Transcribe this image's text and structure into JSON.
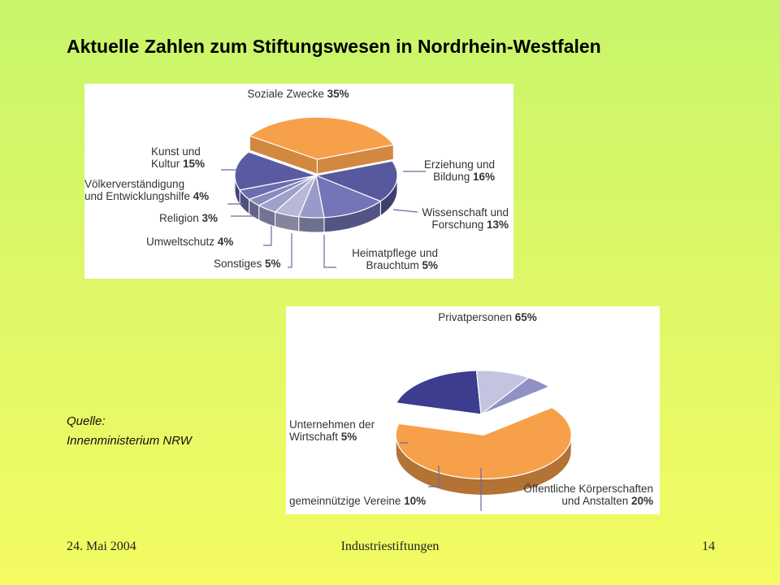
{
  "slide": {
    "title": "Aktuelle Zahlen zum Stiftungswesen in Nordrhein-Westfalen",
    "source_label": "Quelle:",
    "source_name": "Innenministerium NRW"
  },
  "footer": {
    "date": "24. Mai 2004",
    "center": "Industriestiftungen",
    "page": "14"
  },
  "colors": {
    "orange": "#f7a04a",
    "dark_blue": "#3d3d8f",
    "purple": "#7474b8",
    "light_purple": "#b0b0d6",
    "pale": "#d8d8ea"
  },
  "chart_data": [
    {
      "type": "pie",
      "title": "",
      "slices": [
        {
          "label": "Soziale Zwecke",
          "value": 35,
          "pct_text": "35%",
          "color": "#f7a04a",
          "exploded": true
        },
        {
          "label": "Erziehung und Bildung",
          "value": 16,
          "pct_text": "16%",
          "color": "#58589e"
        },
        {
          "label": "Wissenschaft und Forschung",
          "value": 13,
          "pct_text": "13%",
          "color": "#7474b8"
        },
        {
          "label": "Heimatpflege und Brauchtum",
          "value": 5,
          "pct_text": "5%",
          "color": "#9a9ac8"
        },
        {
          "label": "Sonstiges",
          "value": 5,
          "pct_text": "5%",
          "color": "#b8b8d8"
        },
        {
          "label": "Umweltschutz",
          "value": 4,
          "pct_text": "4%",
          "color": "#a0a0cc"
        },
        {
          "label": "Religion",
          "value": 3,
          "pct_text": "3%",
          "color": "#8a8ac0"
        },
        {
          "label": "Völkerverständigung und Entwicklungshilfe",
          "value": 4,
          "pct_text": "4%",
          "color": "#6c6cb0"
        },
        {
          "label": "Kunst und Kultur",
          "value": 15,
          "pct_text": "15%",
          "color": "#5a5aa2"
        }
      ],
      "label_lines": {
        "Soziale Zwecke": [
          "Soziale Zwecke"
        ],
        "Erziehung und Bildung": [
          "Erziehung und",
          "Bildung"
        ],
        "Wissenschaft und Forschung": [
          "Wissenschaft und",
          "Forschung"
        ],
        "Heimatpflege und Brauchtum": [
          "Heimatpflege und",
          "Brauchtum"
        ],
        "Sonstiges": [
          "Sonstiges"
        ],
        "Umweltschutz": [
          "Umweltschutz"
        ],
        "Religion": [
          "Religion"
        ],
        "Völkerverständigung und Entwicklungshilfe": [
          "Völkerverständigung",
          "und Entwicklungshilfe"
        ],
        "Kunst und Kultur": [
          "Kunst und",
          "Kultur"
        ]
      }
    },
    {
      "type": "pie",
      "title": "",
      "slices": [
        {
          "label": "Privatpersonen",
          "value": 65,
          "pct_text": "65%",
          "color": "#f7a04a",
          "exploded": true
        },
        {
          "label": "Öffentliche Körperschaften und Anstalten",
          "value": 20,
          "pct_text": "20%",
          "color": "#3d3d8f"
        },
        {
          "label": "gemeinnützige Vereine",
          "value": 10,
          "pct_text": "10%",
          "color": "#c4c4e0"
        },
        {
          "label": "Unternehmen der Wirtschaft",
          "value": 5,
          "pct_text": "5%",
          "color": "#9090c4"
        }
      ],
      "label_lines": {
        "Privatpersonen": [
          "Privatpersonen"
        ],
        "Öffentliche Körperschaften und Anstalten": [
          "Öffentliche Körperschaften",
          "und Anstalten"
        ],
        "gemeinnützige Vereine": [
          "gemeinnützige Vereine"
        ],
        "Unternehmen der Wirtschaft": [
          "Unternehmen der",
          "Wirtschaft"
        ]
      }
    }
  ]
}
